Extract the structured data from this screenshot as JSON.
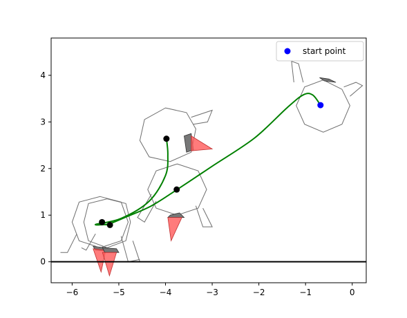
{
  "chart_data": {
    "type": "scatter",
    "title": "",
    "xlabel": "",
    "ylabel": "",
    "xlim": [
      -6.45,
      0.3
    ],
    "ylim": [
      -0.45,
      4.8
    ],
    "xticks": [
      -6,
      -5,
      -4,
      -3,
      -2,
      -1,
      0
    ],
    "xtick_labels": [
      "−6",
      "−5",
      "−4",
      "−3",
      "−2",
      "−1",
      "0"
    ],
    "yticks": [
      0,
      1,
      2,
      3,
      4
    ],
    "ytick_labels": [
      "0",
      "1",
      "2",
      "3",
      "4"
    ],
    "grid": false,
    "legend": {
      "placement": "top-right",
      "entries": [
        {
          "label": "start point",
          "color": "#0000ff",
          "marker": "circle"
        }
      ]
    },
    "ground_line": {
      "y": 0,
      "color": "#000000"
    },
    "start_point": {
      "x": -0.68,
      "y": 3.36,
      "color": "#0000ff"
    },
    "trajectories": [
      {
        "color": "#008000",
        "points": [
          [
            -0.68,
            3.36
          ],
          [
            -0.85,
            3.58
          ],
          [
            -1.05,
            3.58
          ],
          [
            -1.4,
            3.3
          ],
          [
            -2.1,
            2.65
          ],
          [
            -3.0,
            2.05
          ],
          [
            -3.75,
            1.55
          ],
          [
            -4.3,
            1.2
          ],
          [
            -4.8,
            0.98
          ],
          [
            -5.18,
            0.82
          ],
          [
            -5.3,
            0.8
          ]
        ]
      },
      {
        "color": "#008000",
        "points": [
          [
            -3.98,
            2.64
          ],
          [
            -3.95,
            2.3
          ],
          [
            -4.0,
            1.85
          ],
          [
            -4.35,
            1.3
          ],
          [
            -4.95,
            0.93
          ],
          [
            -5.5,
            0.8
          ],
          [
            -5.2,
            0.8
          ]
        ]
      }
    ],
    "joint_points": {
      "color": "#000000",
      "points": [
        [
          -3.98,
          2.64
        ],
        [
          -3.76,
          1.55
        ],
        [
          -5.36,
          0.85
        ],
        [
          -5.19,
          0.79
        ]
      ]
    }
  },
  "figures": {
    "robot_poses": [
      {
        "body": [
          [
            -0.62,
            3.9
          ],
          [
            -0.22,
            3.7
          ],
          [
            -0.05,
            3.35
          ],
          [
            -0.22,
            2.95
          ],
          [
            -0.62,
            2.78
          ],
          [
            -1.02,
            2.95
          ],
          [
            -1.2,
            3.35
          ],
          [
            -1.02,
            3.75
          ]
        ],
        "limbs": [
          [
            [
              -1.25,
              3.85
            ],
            [
              -1.3,
              4.3
            ],
            [
              -1.15,
              4.25
            ],
            [
              -1.05,
              3.85
            ]
          ],
          [
            [
              -0.18,
              3.75
            ],
            [
              0.08,
              3.85
            ],
            [
              0.22,
              3.78
            ],
            [
              -0.05,
              3.55
            ]
          ]
        ],
        "tiles_dark": [
          [
            [
              -0.7,
              3.95
            ],
            [
              -0.5,
              3.92
            ],
            [
              -0.35,
              3.85
            ],
            [
              -0.6,
              3.88
            ]
          ]
        ],
        "tiles_red": []
      },
      {
        "body": [
          [
            -4.0,
            3.3
          ],
          [
            -3.55,
            3.2
          ],
          [
            -3.35,
            2.85
          ],
          [
            -3.45,
            2.35
          ],
          [
            -3.9,
            2.15
          ],
          [
            -4.35,
            2.25
          ],
          [
            -4.55,
            2.6
          ],
          [
            -4.45,
            3.05
          ]
        ],
        "limbs": [
          [
            [
              -3.45,
              3.1
            ],
            [
              -3.0,
              3.25
            ],
            [
              -3.1,
              3.0
            ],
            [
              -3.4,
              2.95
            ]
          ]
        ],
        "tiles_dark": [
          [
            [
              -3.45,
              2.75
            ],
            [
              -3.4,
              2.4
            ],
            [
              -3.55,
              2.35
            ],
            [
              -3.6,
              2.7
            ]
          ]
        ],
        "tiles_red": [
          [
            [
              -3.45,
              2.7
            ],
            [
              -3.0,
              2.42
            ],
            [
              -3.45,
              2.38
            ]
          ]
        ]
      },
      {
        "body": [
          [
            -3.75,
            2.1
          ],
          [
            -3.3,
            1.95
          ],
          [
            -3.12,
            1.55
          ],
          [
            -3.3,
            1.15
          ],
          [
            -3.75,
            1.0
          ],
          [
            -4.2,
            1.15
          ],
          [
            -4.38,
            1.55
          ],
          [
            -4.2,
            1.95
          ]
        ],
        "limbs": [
          [
            [
              -4.3,
              1.45
            ],
            [
              -4.6,
              0.95
            ],
            [
              -4.45,
              0.85
            ],
            [
              -4.2,
              1.3
            ]
          ],
          [
            [
              -3.35,
              1.2
            ],
            [
              -3.2,
              0.75
            ],
            [
              -3.0,
              0.75
            ],
            [
              -3.2,
              1.15
            ]
          ]
        ],
        "tiles_dark": [
          [
            [
              -3.9,
              1.0
            ],
            [
              -3.7,
              1.05
            ],
            [
              -3.6,
              0.95
            ],
            [
              -3.95,
              0.95
            ]
          ]
        ],
        "tiles_red": [
          [
            [
              -3.95,
              0.95
            ],
            [
              -3.65,
              0.95
            ],
            [
              -3.88,
              0.45
            ]
          ]
        ]
      },
      {
        "body": [
          [
            -5.25,
            1.35
          ],
          [
            -4.85,
            1.25
          ],
          [
            -4.75,
            0.85
          ],
          [
            -4.85,
            0.45
          ],
          [
            -5.25,
            0.3
          ],
          [
            -5.65,
            0.45
          ],
          [
            -5.75,
            0.85
          ],
          [
            -5.65,
            1.25
          ]
        ],
        "limbs": [
          [
            [
              -5.5,
              0.6
            ],
            [
              -5.7,
              0.25
            ],
            [
              -5.8,
              0.3
            ]
          ],
          [
            [
              -4.95,
              0.55
            ],
            [
              -4.8,
              0.0
            ],
            [
              -4.55,
              0.05
            ]
          ]
        ],
        "tiles_dark": [
          [
            [
              -5.55,
              0.33
            ],
            [
              -5.28,
              0.3
            ],
            [
              -5.2,
              0.22
            ],
            [
              -5.5,
              0.25
            ]
          ]
        ],
        "tiles_red": [
          [
            [
              -5.55,
              0.28
            ],
            [
              -5.28,
              0.25
            ],
            [
              -5.38,
              -0.22
            ]
          ]
        ]
      },
      {
        "body": [
          [
            -5.4,
            1.4
          ],
          [
            -4.95,
            1.28
          ],
          [
            -4.8,
            0.85
          ],
          [
            -4.95,
            0.45
          ],
          [
            -5.4,
            0.3
          ],
          [
            -5.85,
            0.45
          ],
          [
            -6.0,
            0.85
          ],
          [
            -5.85,
            1.28
          ]
        ],
        "limbs": [
          [
            [
              -5.9,
              0.6
            ],
            [
              -6.1,
              0.2
            ],
            [
              -6.25,
              0.2
            ]
          ],
          [
            [
              -4.7,
              0.45
            ],
            [
              -4.55,
              0.0
            ],
            [
              -4.4,
              0.0
            ]
          ]
        ],
        "tiles_dark": [
          [
            [
              -5.35,
              0.3
            ],
            [
              -5.05,
              0.28
            ],
            [
              -5.0,
              0.2
            ],
            [
              -5.3,
              0.2
            ]
          ]
        ],
        "tiles_red": [
          [
            [
              -5.35,
              0.2
            ],
            [
              -5.05,
              0.2
            ],
            [
              -5.2,
              -0.3
            ]
          ]
        ]
      }
    ]
  }
}
